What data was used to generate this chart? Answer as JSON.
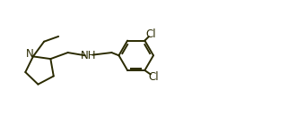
{
  "fig_width": 3.4,
  "fig_height": 1.37,
  "dpi": 100,
  "line_color": "#2a2a00",
  "bg_color": "#ffffff",
  "label_color": "#2a2a00",
  "font_size": 8.5,
  "lw": 1.4,
  "ring_r": 0.52,
  "brad": 0.6,
  "xlim": [
    0.0,
    10.5
  ],
  "ylim": [
    0.5,
    3.8
  ]
}
